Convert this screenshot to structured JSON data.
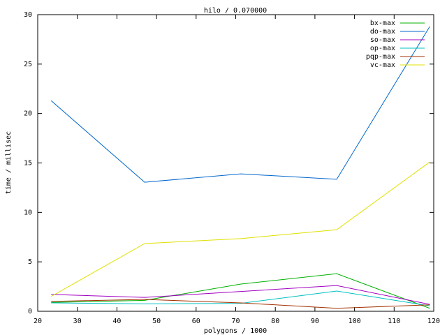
{
  "chart_data": {
    "type": "line",
    "title": "hilo / 0.070000",
    "x_label": "polygons / 1000",
    "y_label": "time / millisec",
    "x": [
      23.4,
      47,
      71.3,
      95.5,
      119
    ],
    "xlim": [
      20,
      120
    ],
    "xticks": [
      20,
      30,
      40,
      50,
      60,
      70,
      80,
      90,
      100,
      110,
      120
    ],
    "ylim": [
      0,
      30
    ],
    "yticks": [
      0,
      5,
      10,
      15,
      20,
      25,
      30
    ],
    "legend": "top-right",
    "series": [
      {
        "name": "bx-max",
        "color": "#00b000",
        "values": [
          0.9,
          1.1,
          2.75,
          3.8,
          0.3
        ]
      },
      {
        "name": "do-max",
        "color": "#0066cc",
        "values": [
          21.3,
          13.05,
          13.9,
          13.35,
          28.8
        ]
      },
      {
        "name": "so-max",
        "color": "#a000c0",
        "values": [
          1.7,
          1.4,
          2.0,
          2.6,
          0.7
        ]
      },
      {
        "name": "op-max",
        "color": "#00c0c0",
        "values": [
          0.85,
          0.75,
          0.8,
          2.05,
          0.55
        ]
      },
      {
        "name": "pqp-max",
        "color": "#a03000",
        "values": [
          1.0,
          1.2,
          0.85,
          0.3,
          0.65
        ]
      },
      {
        "name": "vc-max",
        "color": "#e0e000",
        "values": [
          1.5,
          6.85,
          7.35,
          8.25,
          15.1
        ]
      }
    ]
  }
}
